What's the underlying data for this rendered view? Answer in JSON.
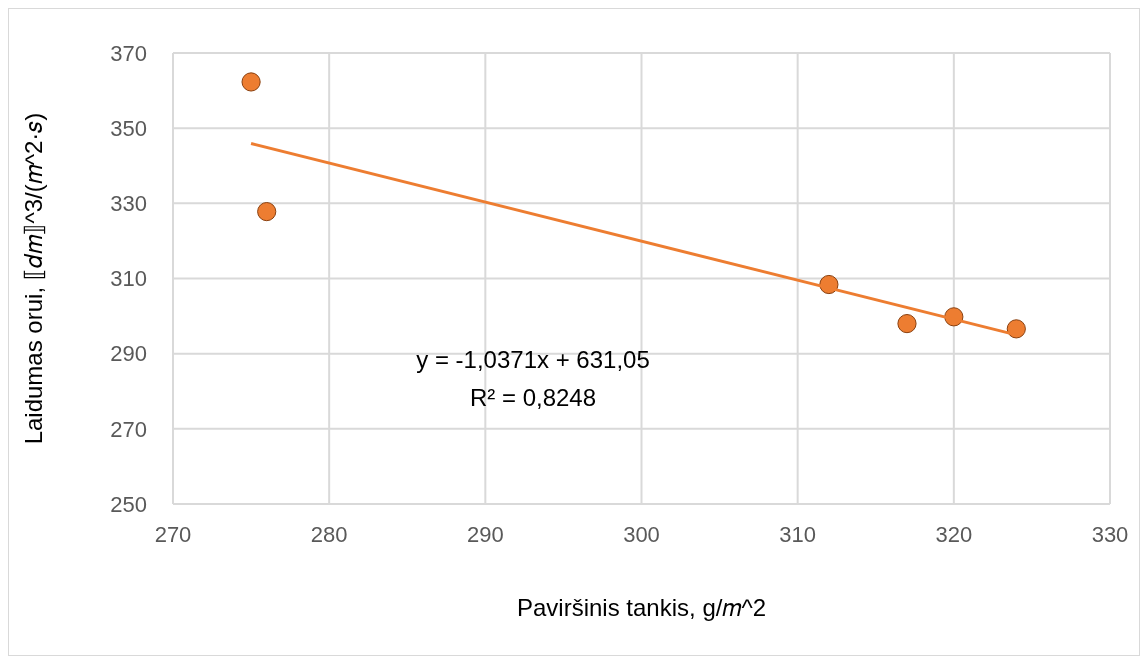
{
  "chart_data": {
    "type": "scatter",
    "xlabel": "Paviršinis tankis, g/𝑚^2",
    "ylabel": "Laidumas orui, ⟦𝑑𝑚⟧^3/(𝑚^2·𝑠)",
    "xlim": [
      270,
      330
    ],
    "xticks": [
      270,
      280,
      290,
      300,
      310,
      320,
      330
    ],
    "ylim": [
      250,
      370
    ],
    "yticks": [
      250,
      270,
      290,
      310,
      330,
      350,
      370
    ],
    "grid": true,
    "series": [
      {
        "marker": "circle",
        "color": "#ed7d31",
        "x": [
          275,
          276,
          312,
          317,
          320,
          324
        ],
        "values": [
          362.3,
          327.8,
          308.4,
          298,
          299.8,
          296.6
        ]
      },
      {
        "type": "line",
        "color": "#ed7d31",
        "x": [
          275,
          324
        ],
        "values": [
          345.9,
          295.0
        ]
      }
    ],
    "annotations": [
      "y = -1,0371x + 631,05",
      "R² = 0,8248"
    ]
  }
}
